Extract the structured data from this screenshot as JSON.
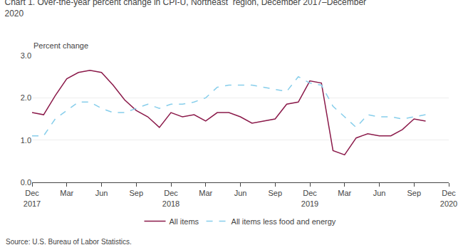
{
  "chart_data": {
    "type": "line",
    "title": "Chart 1. Over-the-year percent change in CPI-U, Northeast  region, December 2017–December\n2020",
    "ylabel": "Percent change",
    "annotations": [
      "Source: U.S. Bureau of Labor Statistics."
    ],
    "categories": [
      "Dec\n2017",
      null,
      null,
      "Mar",
      null,
      null,
      "Jun",
      null,
      null,
      "Sep",
      null,
      null,
      "Dec\n2018",
      null,
      null,
      "Mar",
      null,
      null,
      "Jun",
      null,
      null,
      "Sep",
      null,
      null,
      "Dec\n2019",
      null,
      null,
      "Mar",
      null,
      null,
      "Jun",
      null,
      null,
      "Sep",
      null,
      null,
      "Dec\n2020"
    ],
    "series": [
      {
        "name": "All items",
        "color": "#8B1A4A",
        "line_style": "solid",
        "values": [
          1.65,
          1.6,
          2.05,
          2.45,
          2.6,
          2.65,
          2.6,
          2.3,
          1.95,
          1.7,
          1.55,
          1.3,
          1.65,
          1.55,
          1.6,
          1.45,
          1.65,
          1.65,
          1.55,
          1.4,
          1.45,
          1.5,
          1.85,
          1.9,
          2.4,
          2.35,
          0.75,
          0.65,
          1.05,
          1.15,
          1.1,
          1.1,
          1.25,
          1.5,
          1.45,
          null,
          null
        ]
      },
      {
        "name": "All items less food and energy",
        "color": "#87CEEB",
        "line_style": "dashed",
        "values": [
          1.1,
          1.1,
          1.5,
          1.7,
          1.9,
          1.9,
          1.75,
          1.65,
          1.65,
          1.75,
          1.85,
          1.75,
          1.85,
          1.85,
          1.9,
          2.0,
          2.25,
          2.3,
          2.3,
          2.3,
          2.25,
          2.2,
          2.15,
          2.5,
          2.35,
          2.3,
          1.8,
          1.55,
          1.3,
          1.6,
          1.55,
          1.55,
          1.5,
          1.55,
          1.6,
          null,
          null
        ]
      }
    ],
    "ylim": [
      0.0,
      3.0
    ],
    "yticks": [
      {
        "value": 0.0,
        "label": "0.0"
      },
      {
        "value": 1.0,
        "label": "1.0"
      },
      {
        "value": 2.0,
        "label": "2.0"
      },
      {
        "value": 3.0,
        "label": "3.0"
      }
    ],
    "grid": true,
    "legend": "lower center"
  }
}
